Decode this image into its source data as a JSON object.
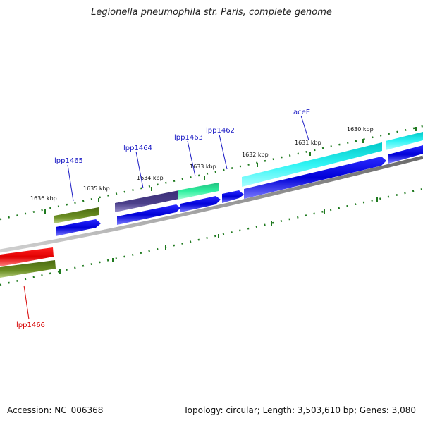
{
  "title": "Legionella pneumophila str. Paris, complete genome",
  "footer": {
    "accession_label": "Accession:",
    "accession": "NC_006368",
    "topology_text": "Topology: circular; Length: 3,503,610 bp; Genes: 3,080"
  },
  "colors": {
    "backbone": "#8a8a8a",
    "tick": "#1f7a1f",
    "gene_label": "#1a1ac4",
    "selected_label": "#d60000",
    "cds": "#0a0ae0"
  },
  "scale_labels": [
    "1630 kbp",
    "1631 kbp",
    "1632 kbp",
    "1633 kbp",
    "1634 kbp",
    "1635 kbp",
    "1636 kbp"
  ],
  "gene_labels": [
    "aceE",
    "lpp1462",
    "lpp1463",
    "lpp1464",
    "lpp1465",
    "lpp1466"
  ],
  "features": [
    {
      "name": "lpp1466",
      "track": "upper",
      "color": "#e00000"
    },
    {
      "name": "lpp1466",
      "track": "lower",
      "color": "#6b8e23"
    },
    {
      "name": "lpp1465",
      "track": "outer",
      "color": "#6b8e23"
    },
    {
      "name": "lpp1465",
      "track": "inner",
      "color": "#0a0ae0"
    },
    {
      "name": "lpp1464",
      "track": "outer",
      "color": "#4b3f8a"
    },
    {
      "name": "lpp1464",
      "track": "inner",
      "color": "#0a0ae0"
    },
    {
      "name": "lpp1463",
      "track": "outer",
      "color": "#2ee89a"
    },
    {
      "name": "lpp1463",
      "track": "inner",
      "color": "#0a0ae0"
    },
    {
      "name": "lpp1462",
      "track": "inner",
      "color": "#0a0ae0"
    },
    {
      "name": "aceE",
      "track": "outer",
      "color": "#22e2e2"
    },
    {
      "name": "aceE",
      "track": "inner",
      "color": "#0a0ae0"
    }
  ]
}
